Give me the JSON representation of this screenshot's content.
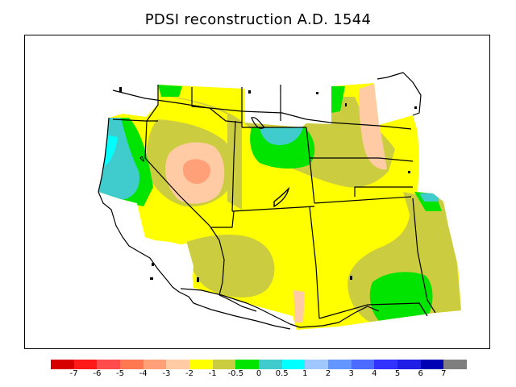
{
  "title": "PDSI reconstruction A.D. 1544",
  "colorbar": {
    "colors": [
      "#d70000",
      "#ff1a1a",
      "#ff4b4b",
      "#ff7850",
      "#ffa078",
      "#ffcba4",
      "#ffff00",
      "#cccc40",
      "#00e400",
      "#40cccc",
      "#00ffff",
      "#a0c8ff",
      "#6496ff",
      "#4b6cff",
      "#3232ff",
      "#1e1ee6",
      "#0000b4",
      "#7f7f7f"
    ],
    "tick_labels": [
      "-7",
      "-6",
      "-5",
      "-4",
      "-3",
      "-2",
      "-1",
      "-0.5",
      "0",
      "0.5",
      "1",
      "2",
      "3",
      "4",
      "5",
      "6",
      "7"
    ]
  }
}
